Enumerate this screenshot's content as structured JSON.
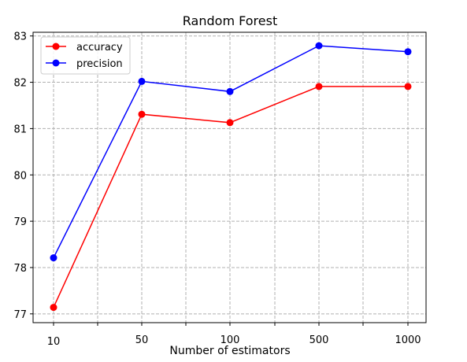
{
  "chart_data": {
    "type": "line",
    "title": "Random Forest",
    "xlabel": "Number of estimators",
    "ylabel": "",
    "categories": [
      "10",
      "50",
      "100",
      "500",
      "1000"
    ],
    "series": [
      {
        "name": "accuracy",
        "color": "#ff0000",
        "values": [
          77.14,
          81.31,
          81.13,
          81.91,
          81.91
        ]
      },
      {
        "name": "precision",
        "color": "#0000ff",
        "values": [
          78.21,
          82.02,
          81.8,
          82.79,
          82.66
        ]
      }
    ],
    "yticks": [
      "77",
      "78",
      "79",
      "80",
      "81",
      "82",
      "83"
    ],
    "ylim": [
      76.81,
      83.08
    ],
    "grid": true,
    "grid_style": "dashed",
    "legend_position": "upper-left"
  }
}
